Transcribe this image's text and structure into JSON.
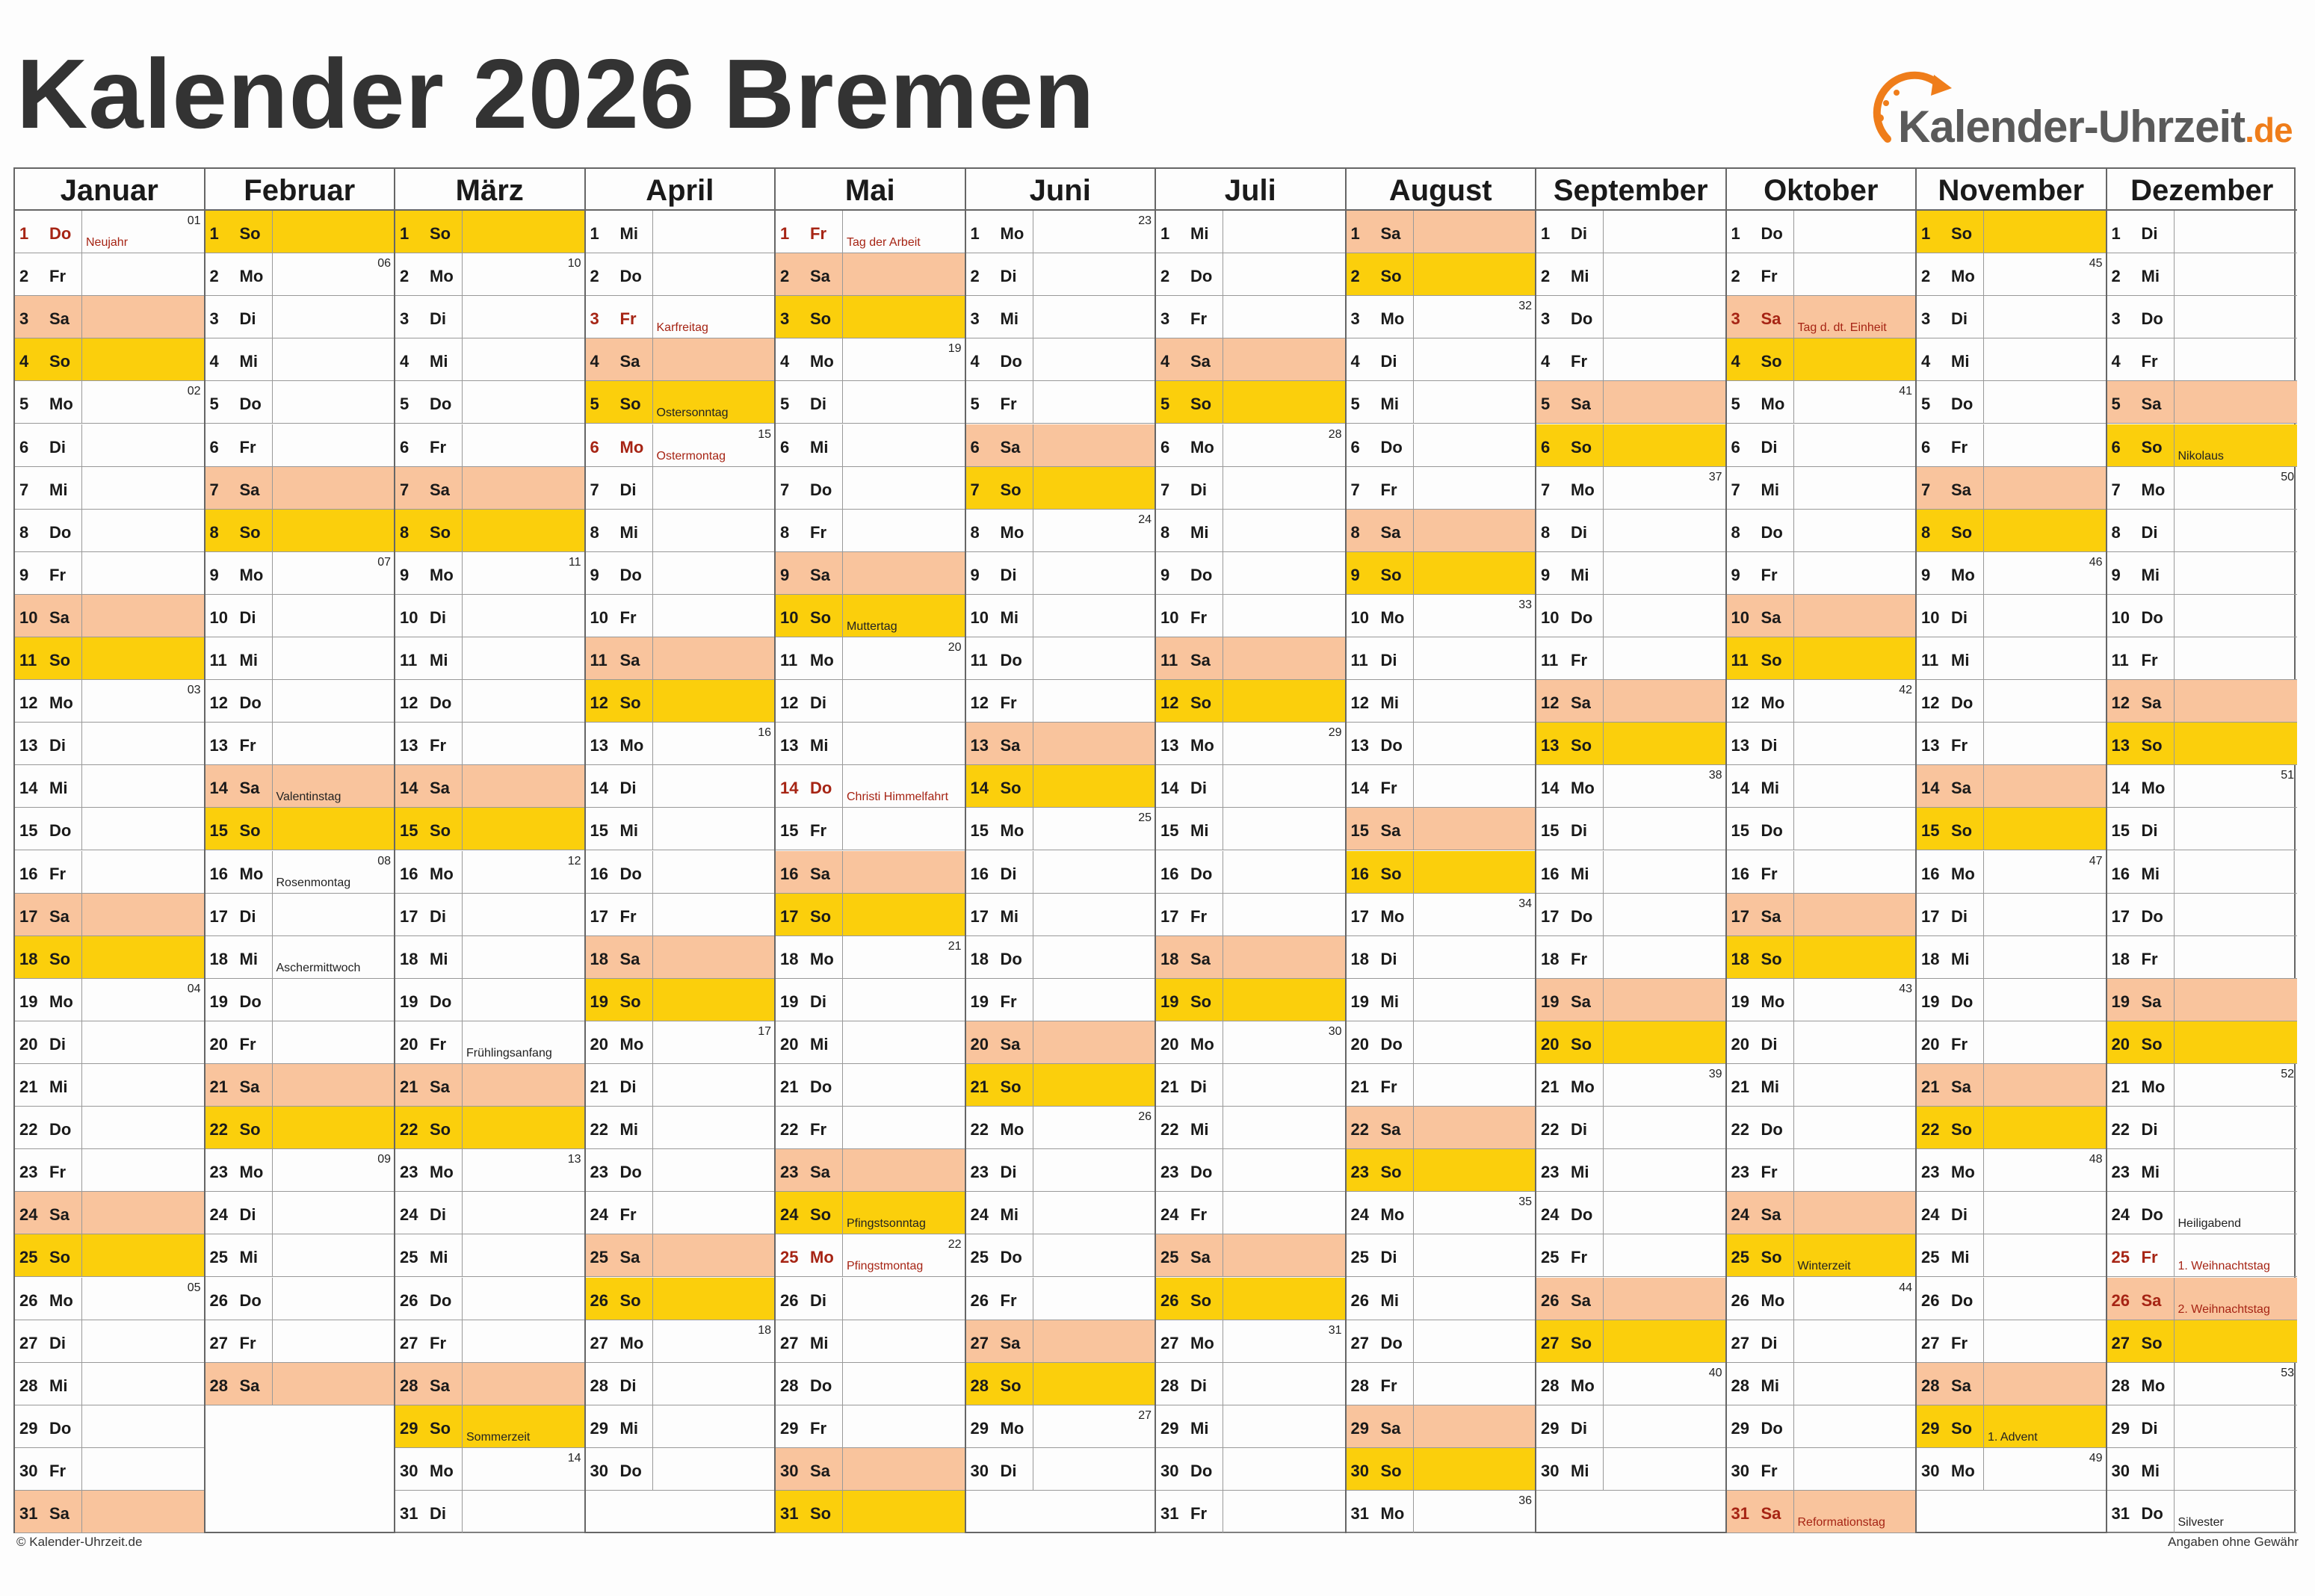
{
  "title": "Kalender 2026 Bremen",
  "logo": {
    "text": "Kalender-Uhrzeit",
    "suffix": ".de",
    "icon": "clock-arrow-icon"
  },
  "footer": {
    "left": "© Kalender-Uhrzeit.de",
    "right": "Angaben ohne Gewähr"
  },
  "colors": {
    "saturday": "#f9c49d",
    "sunday": "#fbcf0c",
    "holiday_text": "#a62414",
    "logo_accent": "#ef7d1a"
  },
  "months": [
    {
      "name": "Januar",
      "days": [
        "Do",
        "Fr",
        "Sa",
        "So",
        "Mo",
        "Di",
        "Mi",
        "Do",
        "Fr",
        "Sa",
        "So",
        "Mo",
        "Di",
        "Mi",
        "Do",
        "Fr",
        "Sa",
        "So",
        "Mo",
        "Di",
        "Mi",
        "Do",
        "Fr",
        "Sa",
        "So",
        "Mo",
        "Di",
        "Mi",
        "Do",
        "Fr",
        "Sa"
      ],
      "kw": {
        "1": "01",
        "5": "02",
        "12": "03",
        "19": "04",
        "26": "05"
      },
      "notes": {
        "1": "Neujahr"
      },
      "holidays": [
        "1"
      ]
    },
    {
      "name": "Februar",
      "days": [
        "So",
        "Mo",
        "Di",
        "Mi",
        "Do",
        "Fr",
        "Sa",
        "So",
        "Mo",
        "Di",
        "Mi",
        "Do",
        "Fr",
        "Sa",
        "So",
        "Mo",
        "Di",
        "Mi",
        "Do",
        "Fr",
        "Sa",
        "So",
        "Mo",
        "Di",
        "Mi",
        "Do",
        "Fr",
        "Sa"
      ],
      "kw": {
        "2": "06",
        "9": "07",
        "16": "08",
        "23": "09"
      },
      "notes": {
        "14": "Valentinstag",
        "16": "Rosenmontag",
        "18": "Aschermittwoch"
      },
      "holidays": []
    },
    {
      "name": "März",
      "days": [
        "So",
        "Mo",
        "Di",
        "Mi",
        "Do",
        "Fr",
        "Sa",
        "So",
        "Mo",
        "Di",
        "Mi",
        "Do",
        "Fr",
        "Sa",
        "So",
        "Mo",
        "Di",
        "Mi",
        "Do",
        "Fr",
        "Sa",
        "So",
        "Mo",
        "Di",
        "Mi",
        "Do",
        "Fr",
        "Sa",
        "So",
        "Mo",
        "Di"
      ],
      "kw": {
        "2": "10",
        "9": "11",
        "16": "12",
        "23": "13",
        "30": "14"
      },
      "notes": {
        "20": "Frühlingsanfang",
        "29": "Sommerzeit"
      },
      "holidays": []
    },
    {
      "name": "April",
      "days": [
        "Mi",
        "Do",
        "Fr",
        "Sa",
        "So",
        "Mo",
        "Di",
        "Mi",
        "Do",
        "Fr",
        "Sa",
        "So",
        "Mo",
        "Di",
        "Mi",
        "Do",
        "Fr",
        "Sa",
        "So",
        "Mo",
        "Di",
        "Mi",
        "Do",
        "Fr",
        "Sa",
        "So",
        "Mo",
        "Di",
        "Mi",
        "Do"
      ],
      "kw": {
        "6": "15",
        "13": "16",
        "20": "17",
        "27": "18"
      },
      "notes": {
        "3": "Karfreitag",
        "5": "Ostersonntag",
        "6": "Ostermontag"
      },
      "holidays": [
        "3",
        "6"
      ]
    },
    {
      "name": "Mai",
      "days": [
        "Fr",
        "Sa",
        "So",
        "Mo",
        "Di",
        "Mi",
        "Do",
        "Fr",
        "Sa",
        "So",
        "Mo",
        "Di",
        "Mi",
        "Do",
        "Fr",
        "Sa",
        "So",
        "Mo",
        "Di",
        "Mi",
        "Do",
        "Fr",
        "Sa",
        "So",
        "Mo",
        "Di",
        "Mi",
        "Do",
        "Fr",
        "Sa",
        "So"
      ],
      "kw": {
        "4": "19",
        "11": "20",
        "18": "21",
        "25": "22"
      },
      "notes": {
        "1": "Tag der Arbeit",
        "10": "Muttertag",
        "14": "Christi Himmelfahrt",
        "24": "Pfingstsonntag",
        "25": "Pfingstmontag"
      },
      "holidays": [
        "1",
        "14",
        "25"
      ]
    },
    {
      "name": "Juni",
      "days": [
        "Mo",
        "Di",
        "Mi",
        "Do",
        "Fr",
        "Sa",
        "So",
        "Mo",
        "Di",
        "Mi",
        "Do",
        "Fr",
        "Sa",
        "So",
        "Mo",
        "Di",
        "Mi",
        "Do",
        "Fr",
        "Sa",
        "So",
        "Mo",
        "Di",
        "Mi",
        "Do",
        "Fr",
        "Sa",
        "So",
        "Mo",
        "Di"
      ],
      "kw": {
        "1": "23",
        "8": "24",
        "15": "25",
        "22": "26",
        "29": "27"
      },
      "notes": {},
      "holidays": []
    },
    {
      "name": "Juli",
      "days": [
        "Mi",
        "Do",
        "Fr",
        "Sa",
        "So",
        "Mo",
        "Di",
        "Mi",
        "Do",
        "Fr",
        "Sa",
        "So",
        "Mo",
        "Di",
        "Mi",
        "Do",
        "Fr",
        "Sa",
        "So",
        "Mo",
        "Di",
        "Mi",
        "Do",
        "Fr",
        "Sa",
        "So",
        "Mo",
        "Di",
        "Mi",
        "Do",
        "Fr"
      ],
      "kw": {
        "6": "28",
        "13": "29",
        "20": "30",
        "27": "31"
      },
      "notes": {},
      "holidays": []
    },
    {
      "name": "August",
      "days": [
        "Sa",
        "So",
        "Mo",
        "Di",
        "Mi",
        "Do",
        "Fr",
        "Sa",
        "So",
        "Mo",
        "Di",
        "Mi",
        "Do",
        "Fr",
        "Sa",
        "So",
        "Mo",
        "Di",
        "Mi",
        "Do",
        "Fr",
        "Sa",
        "So",
        "Mo",
        "Di",
        "Mi",
        "Do",
        "Fr",
        "Sa",
        "So",
        "Mo"
      ],
      "kw": {
        "3": "32",
        "10": "33",
        "17": "34",
        "24": "35",
        "31": "36"
      },
      "notes": {},
      "holidays": []
    },
    {
      "name": "September",
      "days": [
        "Di",
        "Mi",
        "Do",
        "Fr",
        "Sa",
        "So",
        "Mo",
        "Di",
        "Mi",
        "Do",
        "Fr",
        "Sa",
        "So",
        "Mo",
        "Di",
        "Mi",
        "Do",
        "Fr",
        "Sa",
        "So",
        "Mo",
        "Di",
        "Mi",
        "Do",
        "Fr",
        "Sa",
        "So",
        "Mo",
        "Di",
        "Mi"
      ],
      "kw": {
        "7": "37",
        "14": "38",
        "21": "39",
        "28": "40"
      },
      "notes": {},
      "holidays": []
    },
    {
      "name": "Oktober",
      "days": [
        "Do",
        "Fr",
        "Sa",
        "So",
        "Mo",
        "Di",
        "Mi",
        "Do",
        "Fr",
        "Sa",
        "So",
        "Mo",
        "Di",
        "Mi",
        "Do",
        "Fr",
        "Sa",
        "So",
        "Mo",
        "Di",
        "Mi",
        "Do",
        "Fr",
        "Sa",
        "So",
        "Mo",
        "Di",
        "Mi",
        "Do",
        "Fr",
        "Sa"
      ],
      "kw": {
        "5": "41",
        "12": "42",
        "19": "43",
        "26": "44"
      },
      "notes": {
        "3": "Tag d. dt. Einheit",
        "25": "Winterzeit",
        "31": "Reformationstag"
      },
      "holidays": [
        "3",
        "31"
      ]
    },
    {
      "name": "November",
      "days": [
        "So",
        "Mo",
        "Di",
        "Mi",
        "Do",
        "Fr",
        "Sa",
        "So",
        "Mo",
        "Di",
        "Mi",
        "Do",
        "Fr",
        "Sa",
        "So",
        "Mo",
        "Di",
        "Mi",
        "Do",
        "Fr",
        "Sa",
        "So",
        "Mo",
        "Di",
        "Mi",
        "Do",
        "Fr",
        "Sa",
        "So",
        "Mo"
      ],
      "kw": {
        "2": "45",
        "9": "46",
        "16": "47",
        "23": "48",
        "30": "49"
      },
      "notes": {
        "29": "1. Advent"
      },
      "holidays": []
    },
    {
      "name": "Dezember",
      "days": [
        "Di",
        "Mi",
        "Do",
        "Fr",
        "Sa",
        "So",
        "Mo",
        "Di",
        "Mi",
        "Do",
        "Fr",
        "Sa",
        "So",
        "Mo",
        "Di",
        "Mi",
        "Do",
        "Fr",
        "Sa",
        "So",
        "Mo",
        "Di",
        "Mi",
        "Do",
        "Fr",
        "Sa",
        "So",
        "Mo",
        "Di",
        "Mi",
        "Do"
      ],
      "kw": {
        "7": "50",
        "14": "51",
        "21": "52",
        "28": "53"
      },
      "notes": {
        "6": "Nikolaus",
        "24": "Heiligabend",
        "25": "1. Weihnachtstag",
        "26": "2. Weihnachtstag",
        "31": "Silvester"
      },
      "holidays": [
        "25",
        "26"
      ]
    }
  ]
}
